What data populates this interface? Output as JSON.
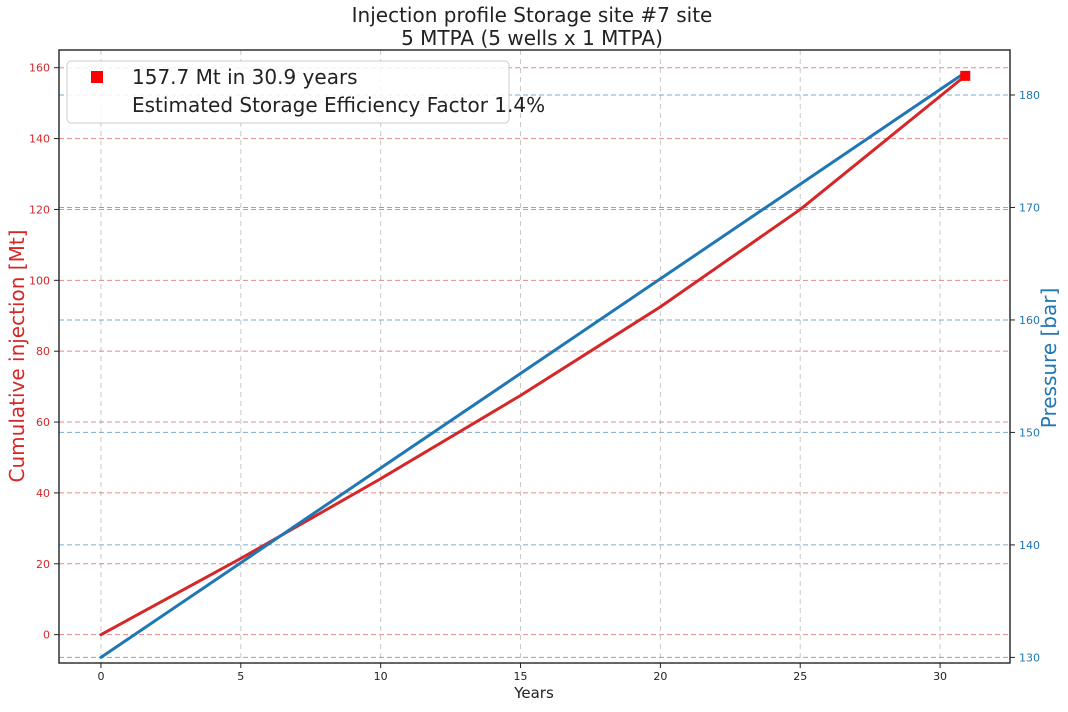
{
  "chart_data": {
    "type": "line",
    "title_line1": "Injection profile Storage site #7 site",
    "title_line2": "5 MTPA (5 wells x 1 MTPA)",
    "xlabel": "Years",
    "ylabel_left": "Cumulative injection [Mt]",
    "ylabel_right": "Pressure [bar]",
    "xlim": [
      -1.5,
      32.5
    ],
    "ylim_left": [
      -8,
      165
    ],
    "ylim_right": [
      129.5,
      184
    ],
    "x_ticks": [
      0,
      5,
      10,
      15,
      20,
      25,
      30
    ],
    "y_ticks_left": [
      0,
      20,
      40,
      60,
      80,
      100,
      120,
      140,
      160
    ],
    "y_ticks_right": [
      130,
      140,
      150,
      160,
      170,
      180
    ],
    "grid": true,
    "legend_position": "top-left",
    "legend": [
      {
        "label": "157.7 Mt in 30.9 years",
        "marker": "square",
        "color": "#ff0000"
      },
      {
        "label": "Estimated Storage Efficiency Factor 1.4%",
        "marker": "none",
        "color": "#ffffff"
      }
    ],
    "series": [
      {
        "axis": "left",
        "color": "#d62728",
        "x": [
          0,
          5,
          10,
          15,
          20,
          25,
          30.9
        ],
        "y": [
          0,
          21.5,
          44,
          67.5,
          92.5,
          120,
          157.7
        ]
      },
      {
        "axis": "right",
        "color": "#1f77b4",
        "x": [
          0,
          30.9
        ],
        "y": [
          130,
          182
        ]
      }
    ],
    "endpoint_marker": {
      "x": 30.9,
      "y": 157.7,
      "color": "#ff0000",
      "shape": "square"
    },
    "colors": {
      "left_axis": "#d62728",
      "right_axis": "#1f77b4",
      "frame": "#222222"
    }
  }
}
